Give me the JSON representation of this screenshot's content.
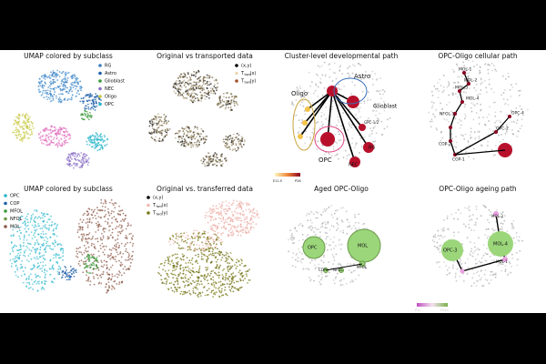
{
  "panels": [
    {
      "title": "UMAP colored by subclass",
      "legend": [
        "RG",
        "Astro",
        "Glioblast",
        "NEC",
        "Oligo",
        "OPC"
      ]
    },
    {
      "title": "Original vs transported data",
      "legend": [
        {
          "text": "(x,y)"
        },
        {
          "symbol": "T",
          "sub": "bwd",
          "arg": "(x)"
        },
        {
          "symbol": "T",
          "sub": "bwd",
          "arg": "(y)"
        }
      ]
    },
    {
      "title": "Cluster-level developmental path",
      "labels": [
        "Oligo",
        "Astro",
        "Glioblast",
        "OPC",
        "RG",
        "NEC",
        "GPC-1/2"
      ],
      "colorbar": [
        "E11.5",
        "P28"
      ]
    },
    {
      "title": "OPC-Oligo cellular path",
      "labels": [
        "MOL-1",
        "MOL-2",
        "MOL-3",
        "MOL-4",
        "NFOL-1",
        "COP-2",
        "COP-1",
        "OPC-2",
        "OPC-4"
      ]
    },
    {
      "title": "UMAP colored by subclass",
      "legend": [
        "OPC",
        "COP",
        "MFOL",
        "NFOL",
        "MOL"
      ]
    },
    {
      "title": "Original vs. transferred data",
      "legend": [
        {
          "text": "(x,y)"
        },
        {
          "symbol": "T",
          "sub": "fwd",
          "arg": "(x)"
        },
        {
          "symbol": "T",
          "sub": "fwd",
          "arg": "(y)"
        }
      ]
    },
    {
      "title": "Aged OPC-Oligo",
      "labels": [
        "OPC",
        "MOL",
        "COP",
        "NFOL",
        "MFOL"
      ]
    },
    {
      "title": "OPC-Oligo ageing path",
      "labels": [
        "OPC-3",
        "MOL-4",
        "MOL-3",
        "MOL-1"
      ],
      "colorbar": [
        "P21",
        "P540"
      ]
    }
  ]
}
